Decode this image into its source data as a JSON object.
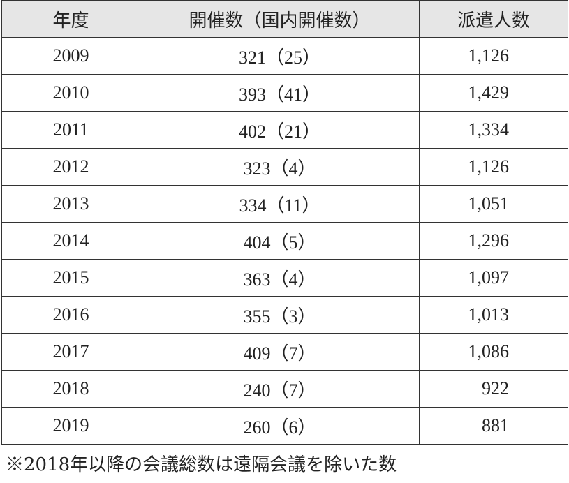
{
  "table": {
    "header": [
      "年度",
      "開催数（国内開催数）",
      "派遣人数"
    ],
    "rows": [
      [
        "2009",
        "321（25）",
        "1,126"
      ],
      [
        "2010",
        "393（41）",
        "1,429"
      ],
      [
        "2011",
        "402（21）",
        "1,334"
      ],
      [
        "2012",
        "323（4）",
        "1,126"
      ],
      [
        "2013",
        "334（11）",
        "1,051"
      ],
      [
        "2014",
        "404（5）",
        "1,296"
      ],
      [
        "2015",
        "363（4）",
        "1,097"
      ],
      [
        "2016",
        "355（3）",
        "1,013"
      ],
      [
        "2017",
        "409（7）",
        "1,086"
      ],
      [
        "2018",
        "240（7）",
        "922"
      ],
      [
        "2019",
        "260（6）",
        "881"
      ]
    ]
  },
  "footnote": "※2018年以降の会議総数は遠隔会議を除いた数"
}
